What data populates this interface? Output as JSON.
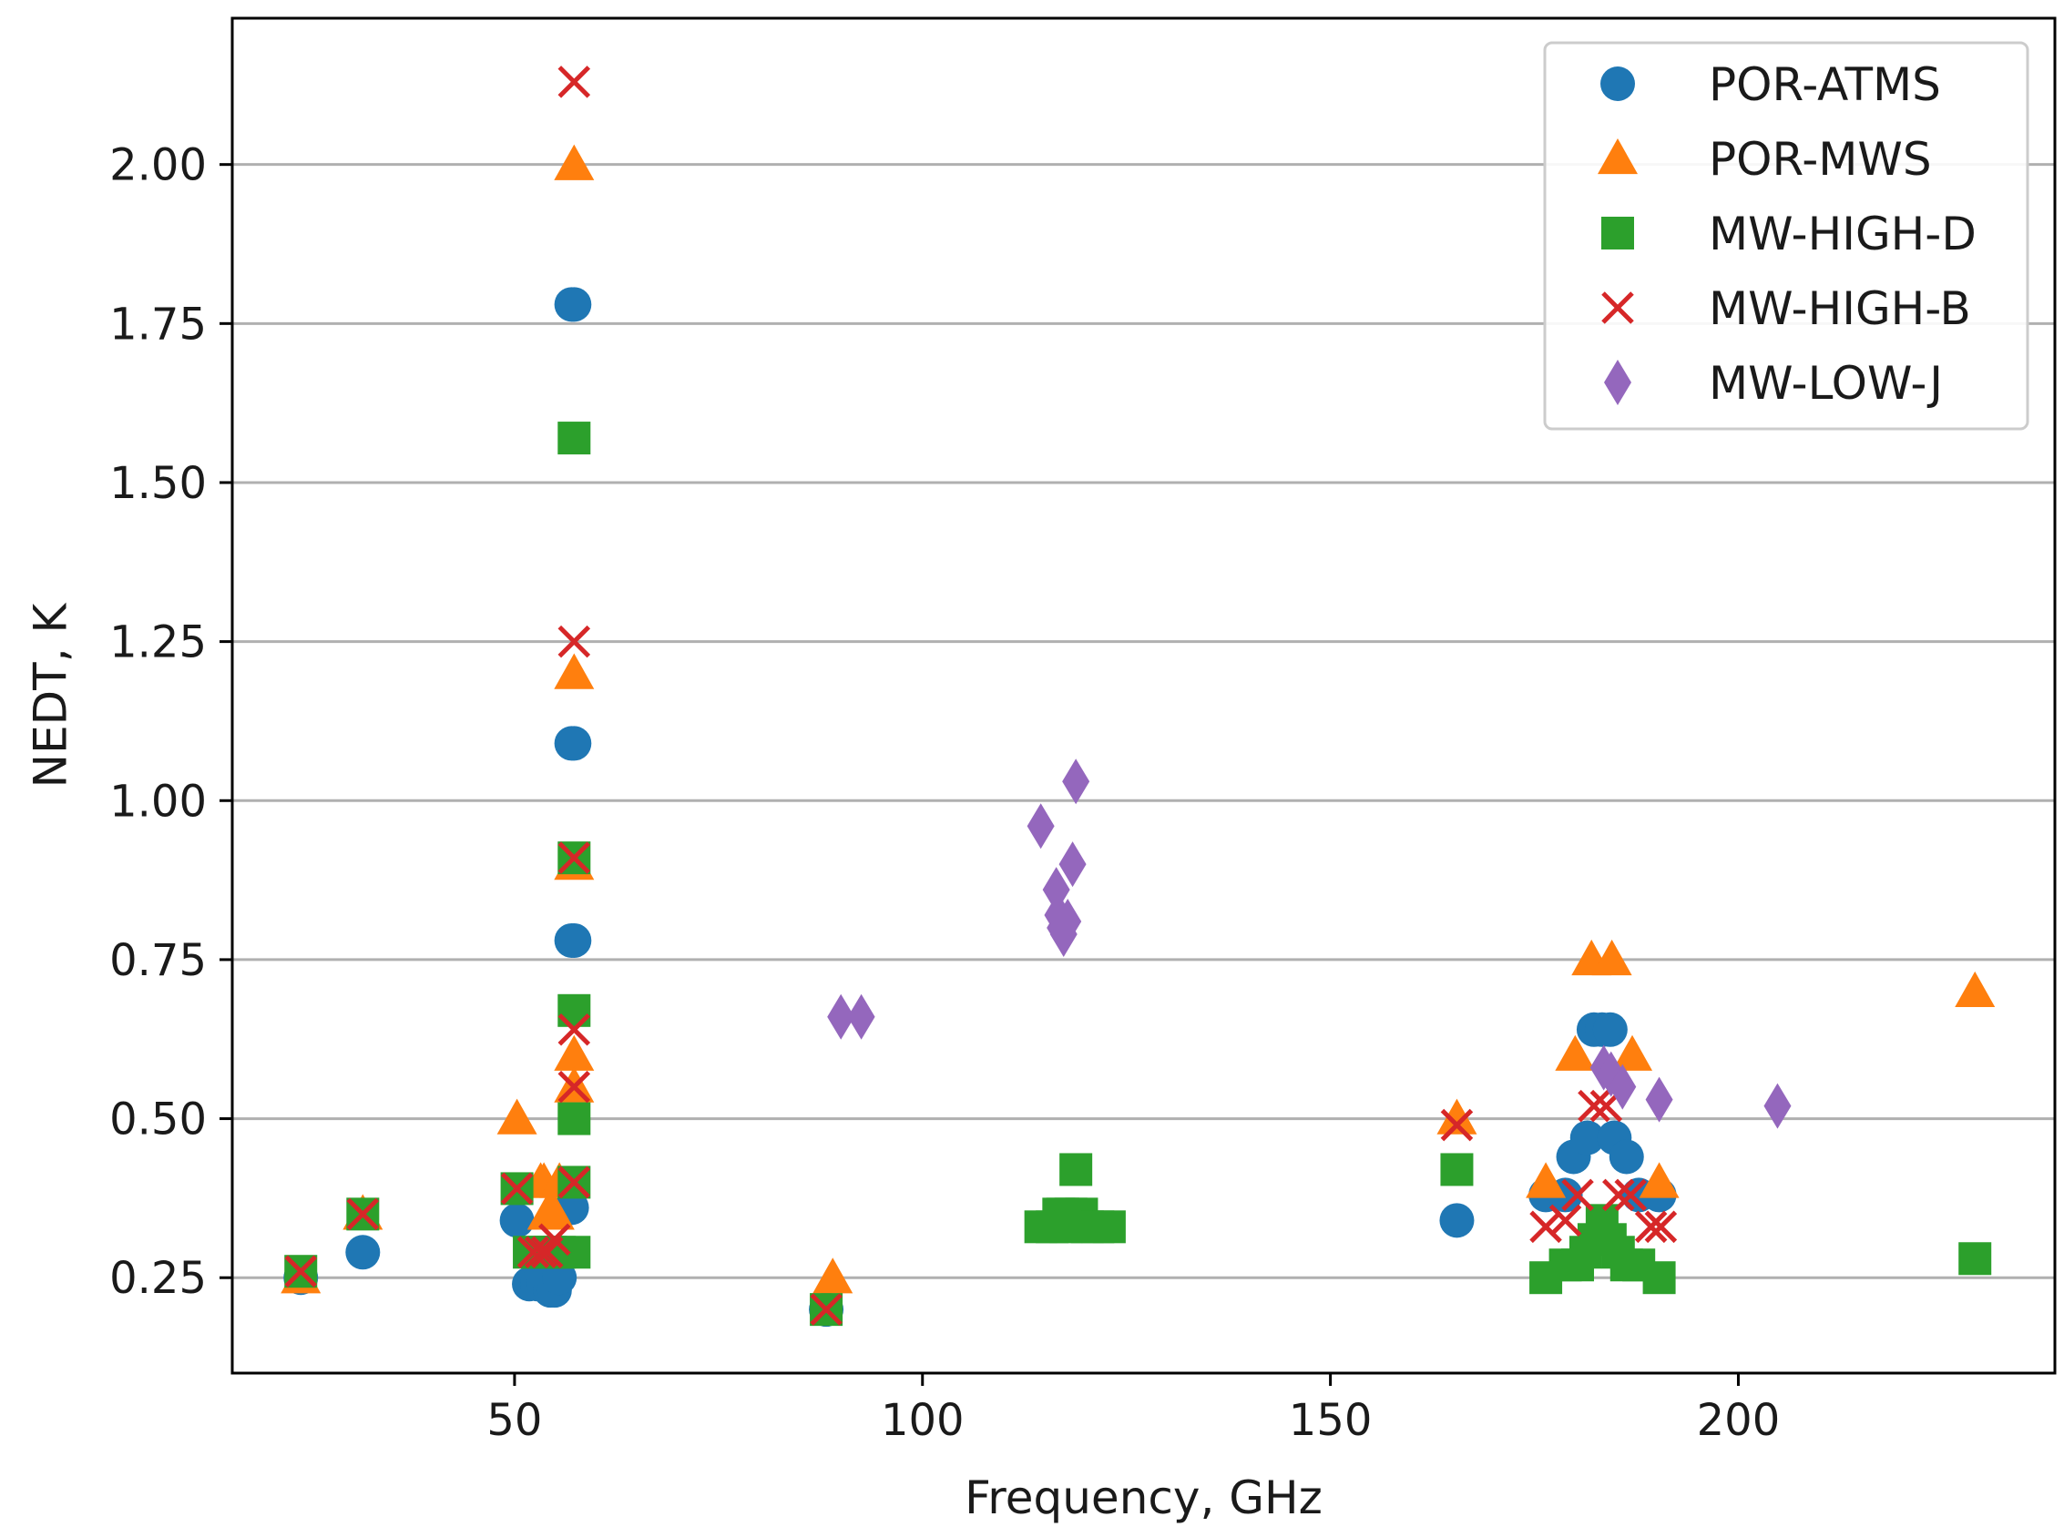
{
  "chart_data": {
    "type": "scatter",
    "title": "",
    "xlabel": "Frequency, GHz",
    "ylabel": "NEDT, K",
    "xlim": [
      15.4,
      238.8
    ],
    "ylim": [
      0.1,
      2.23
    ],
    "xticks": [
      50,
      100,
      150,
      200
    ],
    "xtick_labels": [
      "50",
      "100",
      "150",
      "200"
    ],
    "yticks": [
      0.25,
      0.5,
      0.75,
      1.0,
      1.25,
      1.5,
      1.75,
      2.0
    ],
    "ytick_labels": [
      "0.25",
      "0.50",
      "0.75",
      "1.00",
      "1.25",
      "1.50",
      "1.75",
      "2.00"
    ],
    "grid": "horizontal",
    "legend_position": "top-right",
    "series": [
      {
        "name": "POR-ATMS",
        "marker": "circle",
        "color": "#1f77b4",
        "points": [
          [
            23.8,
            0.25
          ],
          [
            31.4,
            0.29
          ],
          [
            50.3,
            0.34
          ],
          [
            51.8,
            0.24
          ],
          [
            52.8,
            0.24
          ],
          [
            53.6,
            0.24
          ],
          [
            54.4,
            0.23
          ],
          [
            54.9,
            0.23
          ],
          [
            55.5,
            0.25
          ],
          [
            57.0,
            0.36
          ],
          [
            57.0,
            1.78
          ],
          [
            57.3,
            1.78
          ],
          [
            57.0,
            1.09
          ],
          [
            57.3,
            1.09
          ],
          [
            57.0,
            0.78
          ],
          [
            57.3,
            0.78
          ],
          [
            88.2,
            0.2
          ],
          [
            165.5,
            0.34
          ],
          [
            176.4,
            0.38
          ],
          [
            178.8,
            0.38
          ],
          [
            179.8,
            0.44
          ],
          [
            181.5,
            0.47
          ],
          [
            182.3,
            0.64
          ],
          [
            183.3,
            0.64
          ],
          [
            184.3,
            0.64
          ],
          [
            184.8,
            0.47
          ],
          [
            186.3,
            0.44
          ],
          [
            187.8,
            0.38
          ],
          [
            190.3,
            0.38
          ]
        ]
      },
      {
        "name": "POR-MWS",
        "marker": "triangle",
        "color": "#ff7f0e",
        "points": [
          [
            23.8,
            0.25
          ],
          [
            31.4,
            0.35
          ],
          [
            50.3,
            0.5
          ],
          [
            53.2,
            0.4
          ],
          [
            53.6,
            0.4
          ],
          [
            54.0,
            0.35
          ],
          [
            54.4,
            0.35
          ],
          [
            54.9,
            0.35
          ],
          [
            55.5,
            0.4
          ],
          [
            57.3,
            2.0
          ],
          [
            57.3,
            1.2
          ],
          [
            57.3,
            0.9
          ],
          [
            57.3,
            0.6
          ],
          [
            57.3,
            0.55
          ],
          [
            89.0,
            0.25
          ],
          [
            165.5,
            0.5
          ],
          [
            176.4,
            0.4
          ],
          [
            180.0,
            0.6
          ],
          [
            182.0,
            0.75
          ],
          [
            184.5,
            0.75
          ],
          [
            187.0,
            0.6
          ],
          [
            190.3,
            0.4
          ],
          [
            229.0,
            0.7
          ]
        ]
      },
      {
        "name": "MW-HIGH-D",
        "marker": "square",
        "color": "#2ca02c",
        "points": [
          [
            23.8,
            0.26
          ],
          [
            31.4,
            0.35
          ],
          [
            50.3,
            0.39
          ],
          [
            51.8,
            0.29
          ],
          [
            52.8,
            0.29
          ],
          [
            53.6,
            0.29
          ],
          [
            54.4,
            0.29
          ],
          [
            55.5,
            0.29
          ],
          [
            57.3,
            0.29
          ],
          [
            57.3,
            1.57
          ],
          [
            57.3,
            0.91
          ],
          [
            57.3,
            0.67
          ],
          [
            57.3,
            0.5
          ],
          [
            57.3,
            0.4
          ],
          [
            88.2,
            0.2
          ],
          [
            114.5,
            0.33
          ],
          [
            115.9,
            0.33
          ],
          [
            116.7,
            0.35
          ],
          [
            117.2,
            0.35
          ],
          [
            117.6,
            0.33
          ],
          [
            118.2,
            0.35
          ],
          [
            118.8,
            0.42
          ],
          [
            119.5,
            0.35
          ],
          [
            120.2,
            0.33
          ],
          [
            121.5,
            0.33
          ],
          [
            122.9,
            0.33
          ],
          [
            165.5,
            0.42
          ],
          [
            176.4,
            0.25
          ],
          [
            178.8,
            0.27
          ],
          [
            180.3,
            0.27
          ],
          [
            181.3,
            0.29
          ],
          [
            182.3,
            0.31
          ],
          [
            183.3,
            0.34
          ],
          [
            184.3,
            0.31
          ],
          [
            185.3,
            0.29
          ],
          [
            186.3,
            0.27
          ],
          [
            187.8,
            0.27
          ],
          [
            190.3,
            0.25
          ],
          [
            229.0,
            0.28
          ]
        ]
      },
      {
        "name": "MW-HIGH-B",
        "marker": "x",
        "color": "#d62728",
        "points": [
          [
            23.8,
            0.26
          ],
          [
            31.4,
            0.35
          ],
          [
            50.3,
            0.39
          ],
          [
            52.3,
            0.29
          ],
          [
            53.2,
            0.29
          ],
          [
            54.0,
            0.29
          ],
          [
            54.9,
            0.31
          ],
          [
            57.3,
            2.13
          ],
          [
            57.3,
            1.25
          ],
          [
            57.3,
            0.91
          ],
          [
            57.3,
            0.64
          ],
          [
            57.3,
            0.55
          ],
          [
            57.3,
            0.4
          ],
          [
            88.2,
            0.2
          ],
          [
            165.5,
            0.49
          ],
          [
            176.4,
            0.33
          ],
          [
            178.8,
            0.34
          ],
          [
            180.3,
            0.38
          ],
          [
            182.3,
            0.52
          ],
          [
            183.8,
            0.52
          ],
          [
            185.3,
            0.38
          ],
          [
            186.8,
            0.38
          ],
          [
            189.3,
            0.33
          ],
          [
            190.5,
            0.33
          ]
        ]
      },
      {
        "name": "MW-LOW-J",
        "marker": "diamond",
        "color": "#9467bd",
        "points": [
          [
            90.0,
            0.66
          ],
          [
            92.5,
            0.66
          ],
          [
            114.5,
            0.96
          ],
          [
            116.4,
            0.86
          ],
          [
            116.6,
            0.82
          ],
          [
            116.9,
            0.8
          ],
          [
            117.3,
            0.79
          ],
          [
            117.8,
            0.81
          ],
          [
            118.4,
            0.9
          ],
          [
            118.8,
            1.03
          ],
          [
            183.5,
            0.58
          ],
          [
            184.4,
            0.57
          ],
          [
            185.8,
            0.55
          ],
          [
            190.3,
            0.53
          ],
          [
            204.8,
            0.52
          ]
        ]
      }
    ]
  }
}
